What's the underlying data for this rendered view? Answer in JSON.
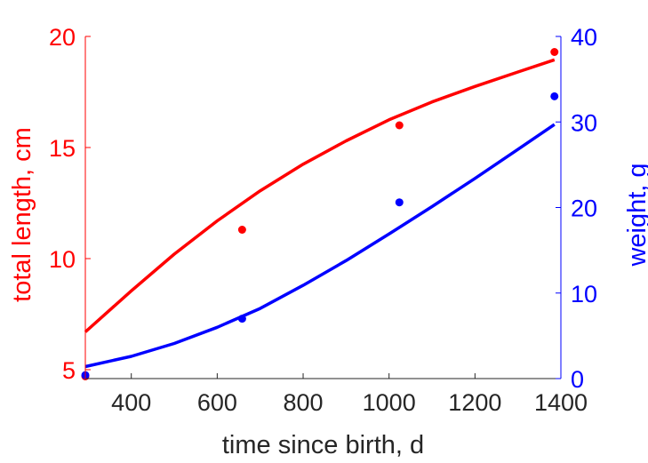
{
  "chart_data": {
    "type": "scatter",
    "title": "",
    "xlabel": "time since birth, d",
    "xlim": [
      293,
      1400
    ],
    "xticks": [
      400,
      600,
      800,
      1000,
      1200,
      1400
    ],
    "xtick_labels": [
      "400",
      "600",
      "800",
      "1000",
      "1200",
      "1400"
    ],
    "left_axis": {
      "label": "total length, cm",
      "color": "#ff0000",
      "lim": [
        4.6,
        20
      ],
      "ticks": [
        5,
        10,
        15,
        20
      ],
      "tick_labels": [
        "5",
        "10",
        "15",
        "20"
      ]
    },
    "right_axis": {
      "label": "weight, g",
      "color": "#0000ff",
      "lim": [
        0,
        40
      ],
      "ticks": [
        0,
        10,
        20,
        30,
        40
      ],
      "tick_labels": [
        "0",
        "10",
        "20",
        "30",
        "40"
      ]
    },
    "series": [
      {
        "axis": "left",
        "color": "#ff0000",
        "points": {
          "x": [
            293,
            658,
            1024,
            1385
          ],
          "y": [
            4.7,
            11.3,
            16.0,
            19.3
          ]
        },
        "fit": {
          "x": [
            293,
            400,
            500,
            600,
            700,
            800,
            900,
            1000,
            1100,
            1200,
            1300,
            1385
          ],
          "y": [
            6.7,
            8.55,
            10.2,
            11.7,
            13.05,
            14.25,
            15.3,
            16.25,
            17.05,
            17.75,
            18.4,
            18.95
          ]
        }
      },
      {
        "axis": "right",
        "color": "#0000ff",
        "points": {
          "x": [
            293,
            658,
            1024,
            1385
          ],
          "y": [
            0.4,
            7.0,
            20.6,
            33.0
          ]
        },
        "fit": {
          "x": [
            293,
            400,
            500,
            600,
            700,
            800,
            900,
            1000,
            1100,
            1200,
            1300,
            1385
          ],
          "y": [
            1.4,
            2.6,
            4.1,
            6.0,
            8.2,
            10.9,
            13.8,
            16.9,
            20.1,
            23.4,
            26.8,
            29.7
          ]
        }
      }
    ],
    "grid": false,
    "legend": "none"
  }
}
